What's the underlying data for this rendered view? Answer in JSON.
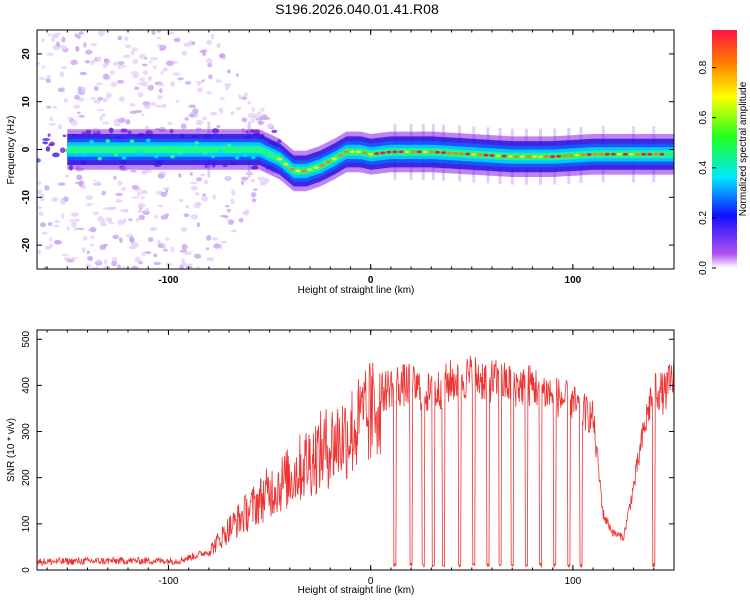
{
  "title": "S196.2026.040.01.41.R08",
  "chart_data": [
    {
      "type": "heatmap",
      "title": "S196.2026.040.01.41.R08",
      "xlabel": "Height of straight line (km)",
      "ylabel": "Frequency (Hz)",
      "xlim": [
        -165,
        150
      ],
      "ylim": [
        -25,
        25
      ],
      "xticks": [
        -100,
        0,
        100
      ],
      "yticks": [
        20,
        10,
        0,
        -10,
        -20
      ],
      "colorbar": {
        "label": "Normalized spectral amplitude",
        "range": [
          0.0,
          0.95
        ],
        "ticks": [
          0.0,
          0.2,
          0.4,
          0.6,
          0.8
        ],
        "colors": [
          "#ffffff",
          "#b050f0",
          "#1010ff",
          "#00e8ff",
          "#20ff20",
          "#ffff00",
          "#ff8000",
          "#ff1040"
        ]
      },
      "ridge": {
        "description": "dominant frequency track",
        "x": [
          -165,
          -140,
          -120,
          -100,
          -80,
          -65,
          -55,
          -45,
          -38,
          -32,
          -25,
          -18,
          -12,
          -5,
          0,
          10,
          30,
          50,
          70,
          90,
          110,
          130,
          150
        ],
        "y": [
          0,
          0,
          0,
          0,
          0,
          0,
          0,
          -2,
          -4.5,
          -4.5,
          -3.5,
          -2,
          -0.5,
          -0.5,
          -1,
          -0.5,
          -0.5,
          -1,
          -1.5,
          -1.5,
          -1,
          -1,
          -1
        ]
      }
    },
    {
      "type": "line",
      "xlabel": "Height of straight line (km)",
      "ylabel": "SNR (10 * v/v)",
      "xlim": [
        -165,
        150
      ],
      "ylim": [
        0,
        520
      ],
      "xticks": [
        -100,
        0,
        100
      ],
      "yticks": [
        0,
        100,
        200,
        300,
        400,
        500
      ],
      "color": "#ee3333",
      "envelope": {
        "x": [
          -165,
          -120,
          -95,
          -80,
          -70,
          -60,
          -50,
          -40,
          -30,
          -20,
          -10,
          0,
          5,
          10,
          20,
          30,
          40,
          50,
          60,
          70,
          80,
          90,
          100,
          110,
          115,
          120,
          125,
          130,
          135,
          140,
          145,
          150
        ],
        "y": [
          18,
          20,
          20,
          40,
          90,
          130,
          170,
          200,
          240,
          270,
          300,
          330,
          380,
          400,
          400,
          380,
          410,
          420,
          410,
          400,
          400,
          380,
          360,
          330,
          120,
          80,
          70,
          180,
          300,
          400,
          380,
          420
        ]
      },
      "dropouts_x": [
        12,
        20,
        26,
        31,
        36,
        44,
        51,
        58,
        64,
        70,
        77,
        84,
        91,
        98,
        104,
        140
      ]
    }
  ]
}
